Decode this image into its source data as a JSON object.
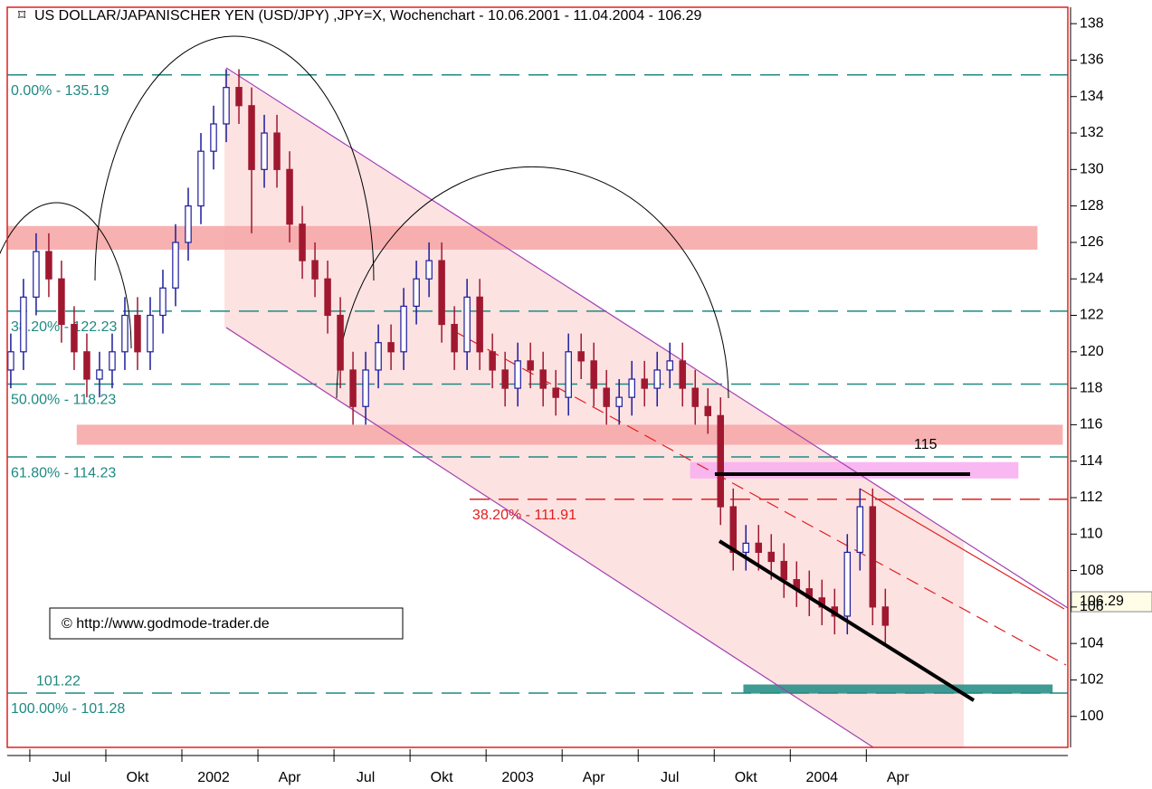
{
  "chart_data": {
    "type": "candlestick",
    "title": "US DOLLAR/JAPANISCHER YEN (USD/JPY) ,JPY=X, Wochenchart - 10.06.2001 - 11.04.2004 - 106.29",
    "x": [
      -1,
      -0.5,
      0,
      0.5,
      1,
      1.5,
      2,
      2.5,
      3,
      3.5,
      4,
      4.5,
      5,
      5.5,
      6,
      6.5,
      7,
      7.5,
      8,
      8.5,
      9,
      9.5,
      10,
      10.5,
      11,
      11.5,
      12,
      12.5,
      13,
      13.5,
      14,
      14.5,
      15,
      15.5,
      16,
      16.5,
      17,
      17.5,
      18,
      18.5,
      19,
      19.5,
      20,
      20.5,
      21,
      21.5,
      22,
      22.5,
      23,
      23.5,
      24,
      24.5,
      25,
      25.5,
      26,
      26.5,
      27,
      27.5,
      28,
      28.5,
      29,
      29.5,
      30,
      30.5,
      31,
      31.5,
      32,
      32.5,
      33,
      33.5
    ],
    "open": [
      119,
      120,
      123,
      125.5,
      124,
      121.5,
      120,
      118.5,
      119,
      120,
      122,
      120,
      122,
      123.5,
      126,
      128,
      131,
      132.5,
      134.5,
      133.5,
      130,
      132,
      130,
      127,
      125,
      124,
      122,
      119,
      117,
      119,
      120.5,
      120,
      122.5,
      124,
      125,
      121.5,
      120,
      123,
      120,
      119,
      118,
      119.5,
      119,
      118,
      117.5,
      120,
      119.5,
      118,
      117,
      117.5,
      118.5,
      118,
      119,
      119.5,
      118,
      117,
      116.5,
      111.5,
      109,
      109.5,
      109,
      108.5,
      107.5,
      107,
      106.5,
      106,
      105.5,
      109,
      111.5,
      106
    ],
    "high": [
      121,
      124,
      126.5,
      126.5,
      125,
      122.5,
      121,
      120,
      121,
      123,
      123,
      123,
      124.5,
      127,
      129,
      132,
      133.5,
      135.5,
      135.5,
      134.5,
      133,
      133,
      131,
      128,
      126,
      125,
      123,
      120,
      120,
      121.5,
      121.5,
      123.5,
      125,
      126,
      126,
      122.5,
      124,
      124,
      121,
      120,
      120.5,
      120.5,
      120,
      119,
      121,
      121,
      120.5,
      119,
      118.5,
      119.5,
      119.5,
      120,
      120.5,
      120.5,
      119,
      118,
      117.5,
      112.5,
      110.5,
      110.5,
      110,
      109.5,
      108.5,
      108,
      107.5,
      107,
      110,
      112.5,
      112.5,
      107
    ],
    "low": [
      118,
      119,
      122,
      123,
      120.5,
      119,
      117.5,
      117.5,
      118,
      119,
      119,
      119,
      121,
      122.5,
      125,
      127,
      130,
      131.5,
      132.5,
      126.5,
      129,
      129,
      126,
      124,
      123,
      121,
      118,
      116,
      116,
      118,
      119,
      119,
      121.5,
      123,
      120.5,
      119,
      119,
      119,
      118,
      117,
      117,
      118,
      117,
      116.5,
      116.5,
      118.5,
      117,
      116,
      116,
      116.5,
      117,
      117,
      118,
      117,
      116,
      115.5,
      110.5,
      108,
      108,
      108,
      107.5,
      106.5,
      106,
      105.5,
      105,
      104.5,
      104.5,
      108,
      105,
      104
    ],
    "close": [
      120,
      123,
      125.5,
      124,
      121.5,
      120,
      118.5,
      119,
      120,
      122,
      120,
      122,
      123.5,
      126,
      128,
      131,
      132.5,
      134.5,
      133.5,
      130,
      132,
      130,
      127,
      125,
      124,
      122,
      119,
      117,
      119,
      120.5,
      120,
      122.5,
      124,
      125,
      121.5,
      120,
      123,
      120,
      119,
      118,
      119.5,
      119,
      118,
      117.5,
      120,
      119.5,
      118,
      117,
      117.5,
      118.5,
      118,
      119,
      119.5,
      118,
      117,
      116.5,
      111.5,
      109,
      109.5,
      109,
      108.5,
      107.5,
      107,
      106.5,
      106,
      105.5,
      109,
      111.5,
      106,
      105
    ],
    "up_color": "#1c1c9c",
    "down_color": "#a01830",
    "xlim": [
      -1.14,
      40.7
    ],
    "xticks": [
      {
        "value": 1,
        "label": "Jul"
      },
      {
        "value": 4,
        "label": "Okt"
      },
      {
        "value": 7,
        "label": "2002"
      },
      {
        "value": 10,
        "label": "Apr"
      },
      {
        "value": 13,
        "label": "Jul"
      },
      {
        "value": 16,
        "label": "Okt"
      },
      {
        "value": 19,
        "label": "2003"
      },
      {
        "value": 22,
        "label": "Apr"
      },
      {
        "value": 25,
        "label": "Jul"
      },
      {
        "value": 28,
        "label": "Okt"
      },
      {
        "value": 31,
        "label": "2004"
      },
      {
        "value": 34,
        "label": "Apr"
      }
    ],
    "ylim": [
      98.3,
      138.9
    ],
    "yticks": [
      100,
      102,
      104,
      106,
      108,
      110,
      112,
      114,
      116,
      118,
      120,
      122,
      124,
      126,
      128,
      130,
      132,
      134,
      136,
      138
    ],
    "grid": true,
    "bands": [
      {
        "from": 125.6,
        "to": 126.9,
        "x_from": -1.14,
        "x_to": 39.5,
        "color": "#f6a8a8"
      },
      {
        "from": 114.9,
        "to": 116,
        "x_from": 1.6,
        "x_to": 40.5,
        "color": "#f6a8a8"
      },
      {
        "from": 113.05,
        "to": 113.95,
        "x_from": 25.8,
        "x_to": 38.75,
        "color": "#f8b0f0"
      },
      {
        "from": 101.25,
        "to": 101.75,
        "x_from": 27.9,
        "x_to": 40.1,
        "color": "#2a9088"
      }
    ],
    "levels": [
      {
        "value": 135.19,
        "label": "0.00% - 135.19",
        "color": "#1e8a82",
        "x_from": -1.14
      },
      {
        "value": 122.23,
        "label": "38.20% - 122.23",
        "color": "#1e8a82",
        "x_from": -1.14
      },
      {
        "value": 118.23,
        "label": "50.00% - 118.23",
        "color": "#1e8a82",
        "x_from": -1.14
      },
      {
        "value": 114.23,
        "label": "61.80% - 114.23",
        "color": "#1e8a82",
        "x_from": -1.14
      },
      {
        "value": 111.91,
        "label": "38.20% - 111.91",
        "color": "#e02020",
        "x_from": 17.1
      },
      {
        "value": 101.28,
        "label": "100.00% - 101.28",
        "color": "#1e8a82",
        "x_from": -1.14
      }
    ],
    "level_note": {
      "value": 101.22,
      "label": "101.22"
    },
    "annotation": {
      "value": 115,
      "label": "115"
    },
    "last_price": {
      "value": 106.29,
      "label": "106.29"
    },
    "copyright": "© http://www.godmode-trader.de"
  }
}
